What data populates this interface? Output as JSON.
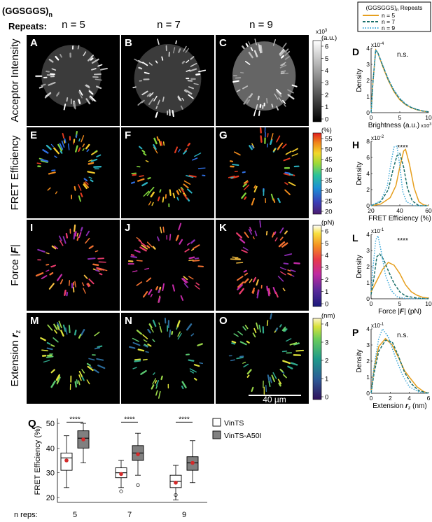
{
  "header": {
    "construct": "(GGSGGS)",
    "construct_sub": "n",
    "repeats": "Repeats:",
    "columns": [
      "n = 5",
      "n = 7",
      "n = 9"
    ]
  },
  "legend": {
    "title": "(GGSGGS)",
    "title_sub": "n",
    "title_suffix": " Repeats",
    "entries": [
      {
        "label": "n = 5",
        "color": "#E69F1E",
        "dash": "solid"
      },
      {
        "label": "n = 7",
        "color": "#1A6F6A",
        "dash": "dashed"
      },
      {
        "label": "n = 9",
        "color": "#3BA7D8",
        "dash": "dotted"
      }
    ]
  },
  "rows": [
    {
      "label": "Acceptor Intensity",
      "letters": [
        "A",
        "B",
        "C"
      ],
      "colorbar": {
        "unit": "(a.u.)",
        "scale": "x10",
        "scale_exp": "3",
        "ticks": [
          "6",
          "5",
          "4",
          "3",
          "2",
          "1",
          "0"
        ],
        "map": "gray"
      }
    },
    {
      "label": "FRET Efficiency",
      "letters": [
        "E",
        "F",
        "G"
      ],
      "colorbar": {
        "unit": "(%)",
        "ticks": [
          "55",
          "50",
          "45",
          "40",
          "35",
          "30",
          "25",
          "20"
        ],
        "map": "jet"
      }
    },
    {
      "label": "Force |",
      "label_italic": "F",
      "label_after": "|",
      "letters": [
        "I",
        "J",
        "K"
      ],
      "colorbar": {
        "unit": "(pN)",
        "ticks": [
          "6",
          "5",
          "4",
          "3",
          "2",
          "1",
          "0"
        ],
        "map": "hot"
      }
    },
    {
      "label": "Extension ",
      "label_italic": "r",
      "label_sub": "z",
      "letters": [
        "M",
        "N",
        "O"
      ],
      "colorbar": {
        "unit": "(nm)",
        "ticks": [
          "4",
          "3",
          "2",
          "1",
          "0"
        ],
        "map": "viridis"
      }
    }
  ],
  "scale_bar": "40 µm",
  "density_panels": [
    {
      "letter": "D",
      "ylabel": "Density",
      "xlabel": "Brightness (a.u.)",
      "xlabel_exp": "x10",
      "xlabel_exp_pow": "3",
      "y_scale": "x10",
      "y_scale_pow": "-4",
      "sig": "n.s.",
      "xticks": [
        "0",
        "5",
        "10"
      ],
      "yticks": [
        "0",
        "1",
        "2",
        "3",
        "4"
      ]
    },
    {
      "letter": "H",
      "ylabel": "Density",
      "xlabel": "FRET Efficiency (%)",
      "y_scale": "x10",
      "y_scale_pow": "-2",
      "sig": "****",
      "xticks": [
        "20",
        "40",
        "60"
      ],
      "yticks": [
        "0",
        "2",
        "4",
        "6",
        "8"
      ]
    },
    {
      "letter": "L",
      "ylabel": "Density",
      "xlabel": "Force |",
      "xlabel_italic": "F",
      "xlabel_after": "| (pN)",
      "y_scale": "x10",
      "y_scale_pow": "-1",
      "sig": "****",
      "xticks": [
        "0",
        "5",
        "10"
      ],
      "yticks": [
        "0",
        "1",
        "2",
        "3",
        "4"
      ]
    },
    {
      "letter": "P",
      "ylabel": "Density",
      "xlabel": "Extension ",
      "xlabel_italic": "r",
      "xlabel_sub": "z",
      "xlabel_after": " (nm)",
      "y_scale": "x10",
      "y_scale_pow": "-1",
      "sig": "n.s.",
      "xticks": [
        "0",
        "2",
        "4",
        "6"
      ],
      "yticks": [
        "0",
        "1",
        "2",
        "3",
        "4"
      ]
    }
  ],
  "chart_data": {
    "type": "box",
    "letter": "Q",
    "ylabel": "FRET Efficiency (%)",
    "xlabel": "n reps:",
    "categories": [
      "5",
      "7",
      "9"
    ],
    "ylim": [
      18,
      52
    ],
    "yticks": [
      20,
      30,
      40,
      50
    ],
    "significance": [
      "****",
      "****",
      "****"
    ],
    "series": [
      {
        "name": "VinTS",
        "color": "#ffffff",
        "boxes": [
          {
            "whisker_low": 24,
            "q1": 31,
            "median": 36,
            "q3": 38,
            "whisker_high": 45,
            "mean": 35,
            "outliers": []
          },
          {
            "whisker_low": 24,
            "q1": 28,
            "median": 30,
            "q3": 32,
            "whisker_high": 35,
            "mean": 29.5,
            "outliers": [
              22.5
            ]
          },
          {
            "whisker_low": 19,
            "q1": 24,
            "median": 26.5,
            "q3": 29,
            "whisker_high": 33,
            "mean": 26,
            "outliers": [
              21
            ]
          }
        ]
      },
      {
        "name": "VinTS-A50I",
        "color": "#808080",
        "boxes": [
          {
            "whisker_low": 34,
            "q1": 40,
            "median": 44,
            "q3": 47,
            "whisker_high": 50,
            "mean": 43.5,
            "outliers": []
          },
          {
            "whisker_low": 29,
            "q1": 35,
            "median": 38,
            "q3": 41,
            "whisker_high": 46,
            "mean": 37.5,
            "outliers": [
              25
            ]
          },
          {
            "whisker_low": 26,
            "q1": 31,
            "median": 34,
            "q3": 36.5,
            "whisker_high": 43,
            "mean": 34,
            "outliers": []
          }
        ]
      }
    ],
    "mean_marker_color": "#D42A2A"
  }
}
